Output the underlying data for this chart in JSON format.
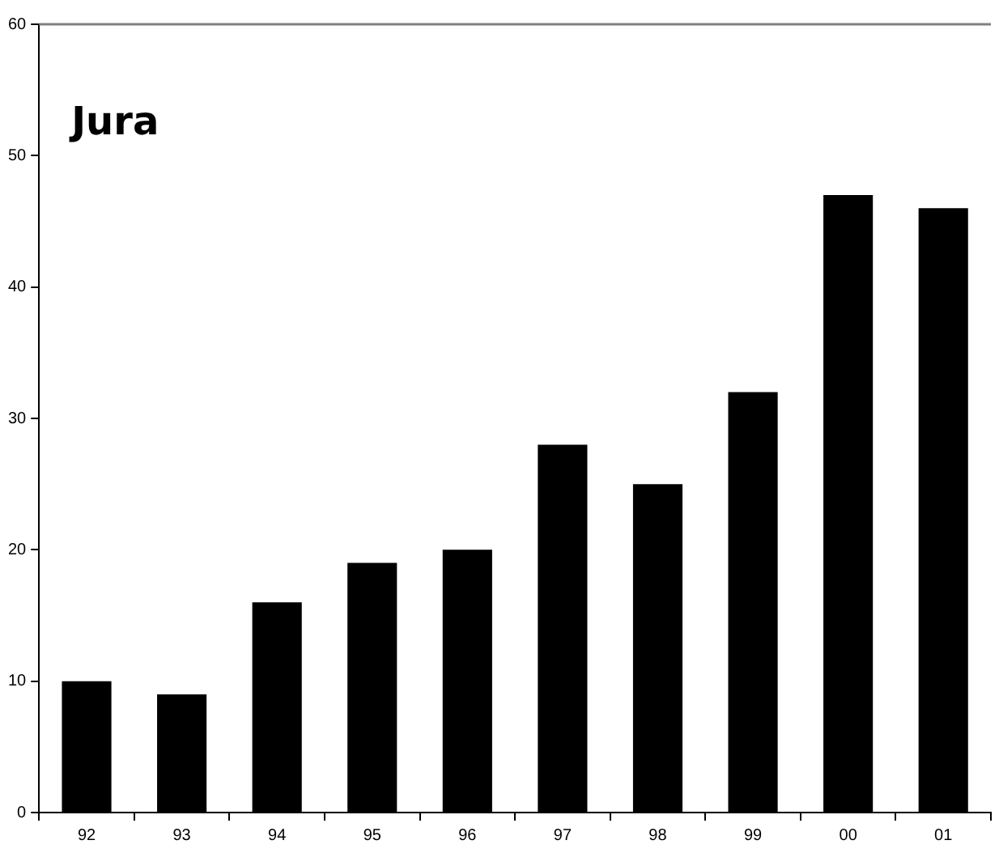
{
  "chart_data": {
    "type": "bar",
    "title": "Jura",
    "categories": [
      "92",
      "93",
      "94",
      "95",
      "96",
      "97",
      "98",
      "99",
      "00",
      "01"
    ],
    "values": [
      10,
      9,
      16,
      19,
      20,
      28,
      25,
      32,
      47,
      46
    ],
    "color": "#000000",
    "ylim": [
      0,
      60
    ],
    "yticks": [
      0,
      10,
      20,
      30,
      40,
      50,
      60
    ],
    "grid": false,
    "legend": false
  }
}
